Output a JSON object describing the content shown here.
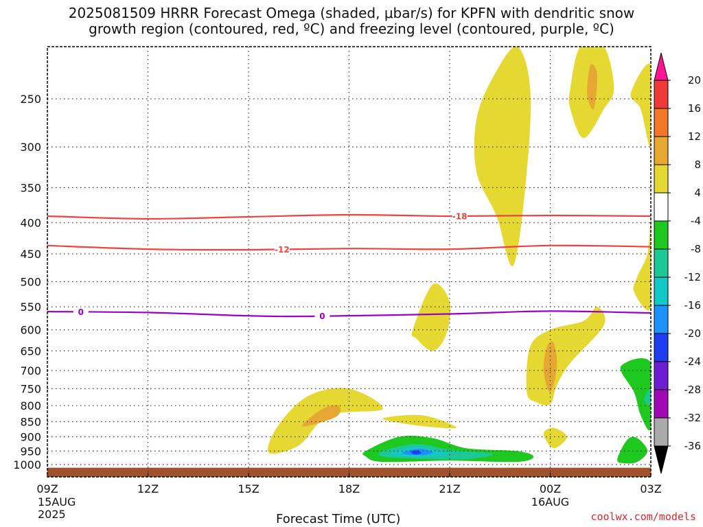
{
  "title": {
    "line1": "2025081509 HRRR Forecast Omega (shaded, μbar/s) for KPFN with dendritic snow",
    "line2": "growth region (contoured, red, ºC) and freezing level (contoured, purple, ºC)"
  },
  "footer": {
    "link": "coolwx.com/models",
    "xlabel": "Forecast Time (UTC)"
  },
  "chart_data": {
    "type": "heatmap",
    "xlabel": "Forecast Time (UTC)",
    "ylabel": "",
    "x_ticks": [
      {
        "hour": 0,
        "label": "09Z",
        "sub1": "15AUG",
        "sub2": "2025"
      },
      {
        "hour": 3,
        "label": "12Z",
        "sub1": "",
        "sub2": ""
      },
      {
        "hour": 6,
        "label": "15Z",
        "sub1": "",
        "sub2": ""
      },
      {
        "hour": 9,
        "label": "18Z",
        "sub1": "",
        "sub2": ""
      },
      {
        "hour": 12,
        "label": "21Z",
        "sub1": "",
        "sub2": ""
      },
      {
        "hour": 15,
        "label": "00Z",
        "sub1": "16AUG",
        "sub2": ""
      },
      {
        "hour": 18,
        "label": "03Z",
        "sub1": "",
        "sub2": ""
      }
    ],
    "xlim_hours": [
      0,
      18
    ],
    "y_levels_hpa": [
      250,
      300,
      350,
      400,
      450,
      500,
      550,
      600,
      650,
      700,
      750,
      800,
      850,
      900,
      950,
      1000
    ],
    "ylim_hpa": [
      200,
      1030
    ],
    "y_scale": "log-pressure",
    "grid": true,
    "colorbar": {
      "ticks": [
        "20",
        "16",
        "12",
        "8",
        "4",
        "-4",
        "-8",
        "-12",
        "-16",
        "-20",
        "-24",
        "-28",
        "-32",
        "-36"
      ],
      "colors": [
        "#ff1493",
        "#f03a3a",
        "#f07828",
        "#e6a832",
        "#e6d832",
        "#ffffff",
        "#1ec81e",
        "#1ec896",
        "#14c8c8",
        "#1e90ff",
        "#1e3cf0",
        "#6e1ed2",
        "#a00ab4",
        "#aaaaaa",
        "#000000"
      ]
    },
    "contours": [
      {
        "name": "-18",
        "color": "#f04040",
        "points": [
          [
            0,
            390
          ],
          [
            3,
            394
          ],
          [
            6,
            391
          ],
          [
            9,
            388
          ],
          [
            12,
            390
          ],
          [
            15,
            389
          ],
          [
            18,
            390
          ]
        ]
      },
      {
        "name": "-12",
        "color": "#f04040",
        "points": [
          [
            0,
            436
          ],
          [
            3,
            442
          ],
          [
            6,
            443
          ],
          [
            9,
            441
          ],
          [
            12,
            442
          ],
          [
            15,
            436
          ],
          [
            18,
            438
          ]
        ]
      },
      {
        "name": "0",
        "color": "#9b00c8",
        "points": [
          [
            0,
            560
          ],
          [
            3,
            562
          ],
          [
            6,
            569
          ],
          [
            8,
            570
          ],
          [
            12,
            565
          ],
          [
            15,
            559
          ],
          [
            18,
            563
          ]
        ]
      }
    ],
    "ground_hpa": 1012,
    "ground_color": "#a0522d",
    "omega_regions": [
      {
        "value_band": "4 to 8",
        "color": "#e6d832",
        "points": [
          [
            6.6,
            955
          ],
          [
            6.9,
            860
          ],
          [
            7.8,
            770
          ],
          [
            9,
            750
          ],
          [
            10,
            810
          ],
          [
            8.4,
            830
          ],
          [
            7.5,
            930
          ]
        ]
      },
      {
        "value_band": "8 to 12",
        "color": "#e6a832",
        "points": [
          [
            7.6,
            865
          ],
          [
            8.2,
            810
          ],
          [
            8.7,
            800
          ],
          [
            8.6,
            835
          ]
        ]
      },
      {
        "value_band": "4 to 8",
        "color": "#e6d832",
        "points": [
          [
            10,
            840
          ],
          [
            11.2,
            830
          ],
          [
            12.2,
            870
          ],
          [
            11,
            862
          ]
        ]
      },
      {
        "value_band": "4 to 8",
        "color": "#e6d832",
        "points": [
          [
            10.9,
            600
          ],
          [
            11.5,
            505
          ],
          [
            12,
            540
          ],
          [
            11.9,
            610
          ],
          [
            11.5,
            650
          ],
          [
            11,
            620
          ]
        ]
      },
      {
        "value_band": "4 to 8",
        "color": "#e6d832",
        "points": [
          [
            12.8,
            270
          ],
          [
            13.3,
            230
          ],
          [
            14,
            205
          ],
          [
            14.4,
            240
          ],
          [
            14.3,
            330
          ],
          [
            13.9,
            470
          ],
          [
            13.4,
            390
          ],
          [
            12.8,
            330
          ]
        ]
      },
      {
        "value_band": "4 to 8",
        "color": "#e6d832",
        "points": [
          [
            15.6,
            240
          ],
          [
            15.9,
            205
          ],
          [
            16.6,
            205
          ],
          [
            16.9,
            240
          ],
          [
            16.6,
            260
          ],
          [
            16.0,
            290
          ],
          [
            15.6,
            260
          ]
        ]
      },
      {
        "value_band": "8 to 12",
        "color": "#e6a832",
        "points": [
          [
            16.1,
            245
          ],
          [
            16.2,
            220
          ],
          [
            16.4,
            228
          ],
          [
            16.3,
            260
          ]
        ]
      },
      {
        "value_band": "4 to 8",
        "color": "#e6d832",
        "points": [
          [
            17.4,
            245
          ],
          [
            18,
            220
          ],
          [
            18,
            300
          ],
          [
            17.7,
            260
          ]
        ]
      },
      {
        "value_band": "4 to 8",
        "color": "#e6d832",
        "points": [
          [
            17.9,
            450
          ],
          [
            18,
            400
          ],
          [
            18,
            550
          ],
          [
            17.5,
            520
          ],
          [
            17.6,
            490
          ]
        ]
      },
      {
        "value_band": "4 to 8",
        "color": "#e6d832",
        "points": [
          [
            14.3,
            760
          ],
          [
            14.4,
            640
          ],
          [
            15.0,
            600
          ],
          [
            16.0,
            580
          ],
          [
            16.4,
            550
          ],
          [
            16.6,
            590
          ],
          [
            15.6,
            680
          ],
          [
            15.2,
            740
          ],
          [
            15.0,
            795
          ],
          [
            14.6,
            790
          ]
        ]
      },
      {
        "value_band": "8 to 12",
        "color": "#e6a832",
        "points": [
          [
            14.8,
            700
          ],
          [
            14.9,
            640
          ],
          [
            15.1,
            630
          ],
          [
            15.2,
            690
          ],
          [
            15.0,
            760
          ]
        ]
      },
      {
        "value_band": "4 to 8",
        "color": "#e6d832",
        "points": [
          [
            14.8,
            890
          ],
          [
            15.1,
            870
          ],
          [
            15.5,
            900
          ],
          [
            15.1,
            940
          ]
        ]
      },
      {
        "value_band": "-4 to -8",
        "color": "#1ec81e",
        "points": [
          [
            9.5,
            950
          ],
          [
            10.5,
            900
          ],
          [
            11.5,
            905
          ],
          [
            12.5,
            940
          ],
          [
            14.0,
            950
          ],
          [
            14.5,
            970
          ],
          [
            14.0,
            990
          ],
          [
            12.0,
            985
          ],
          [
            10.0,
            990
          ],
          [
            9.5,
            970
          ]
        ]
      },
      {
        "value_band": "-8 to -12",
        "color": "#1ec896",
        "points": [
          [
            10,
            950
          ],
          [
            11,
            925
          ],
          [
            12,
            945
          ],
          [
            13.3,
            960
          ],
          [
            12.5,
            980
          ],
          [
            11,
            978
          ],
          [
            10,
            970
          ]
        ]
      },
      {
        "value_band": "-12 to -16",
        "color": "#14c8c8",
        "points": [
          [
            10.3,
            955
          ],
          [
            11,
            935
          ],
          [
            11.6,
            950
          ],
          [
            12,
            965
          ],
          [
            11,
            972
          ],
          [
            10.3,
            965
          ]
        ]
      },
      {
        "value_band": "-16 to -20",
        "color": "#1e90ff",
        "points": [
          [
            10.6,
            955
          ],
          [
            11.1,
            942
          ],
          [
            11.5,
            955
          ],
          [
            11.2,
            965
          ],
          [
            10.7,
            962
          ]
        ]
      },
      {
        "value_band": "-20 to -24",
        "color": "#1e3cf0",
        "points": [
          [
            10.85,
            952
          ],
          [
            11.05,
            948
          ],
          [
            11.15,
            958
          ],
          [
            10.95,
            962
          ]
        ]
      },
      {
        "value_band": "-4 to -8",
        "color": "#1ec81e",
        "points": [
          [
            17.0,
            980
          ],
          [
            17.3,
            910
          ],
          [
            17.6,
            905
          ],
          [
            17.9,
            950
          ],
          [
            17.6,
            990
          ],
          [
            17.2,
            995
          ]
        ]
      },
      {
        "value_band": "-4 to -8",
        "color": "#1ec81e",
        "points": [
          [
            17.1,
            690
          ],
          [
            18,
            680
          ],
          [
            18,
            870
          ],
          [
            17.7,
            830
          ],
          [
            17.5,
            760
          ]
        ]
      },
      {
        "value_band": "-8 to -12",
        "color": "#1ec896",
        "points": [
          [
            17.8,
            780
          ],
          [
            18,
            750
          ],
          [
            18,
            800
          ]
        ]
      }
    ]
  }
}
